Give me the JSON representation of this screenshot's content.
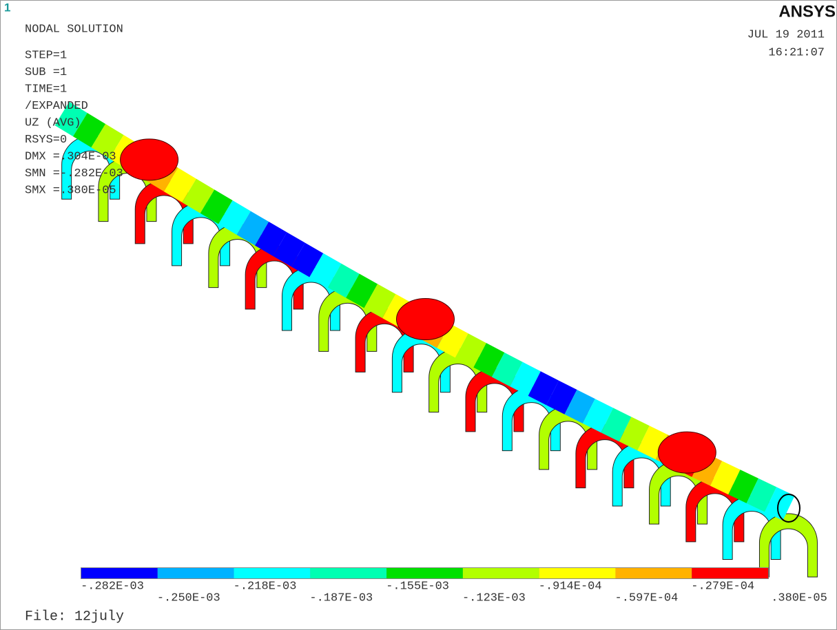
{
  "window_number": "1",
  "logo": "ANSYS",
  "plot_title": "NODAL SOLUTION",
  "settings": [
    "STEP=1",
    "SUB =1",
    "TIME=1",
    "/EXPANDED",
    "UZ       (AVG)",
    "RSYS=0",
    "DMX =.304E-03",
    "SMN =-.282E-03",
    "SMX =.380E-05"
  ],
  "date": "JUL 19 2011",
  "time": "16:21:07",
  "legend": {
    "colors": [
      "#0000ff",
      "#00b2ff",
      "#00ffff",
      "#00ffb2",
      "#00e000",
      "#b2ff00",
      "#ffff00",
      "#ffb200",
      "#ff0000"
    ],
    "labels": [
      "-.282E-03",
      "-.250E-03",
      "-.218E-03",
      "-.187E-03",
      "-.155E-03",
      "-.123E-03",
      "-.914E-04",
      "-.597E-04",
      "-.279E-04",
      ".380E-05"
    ]
  },
  "file": "File: 12july"
}
